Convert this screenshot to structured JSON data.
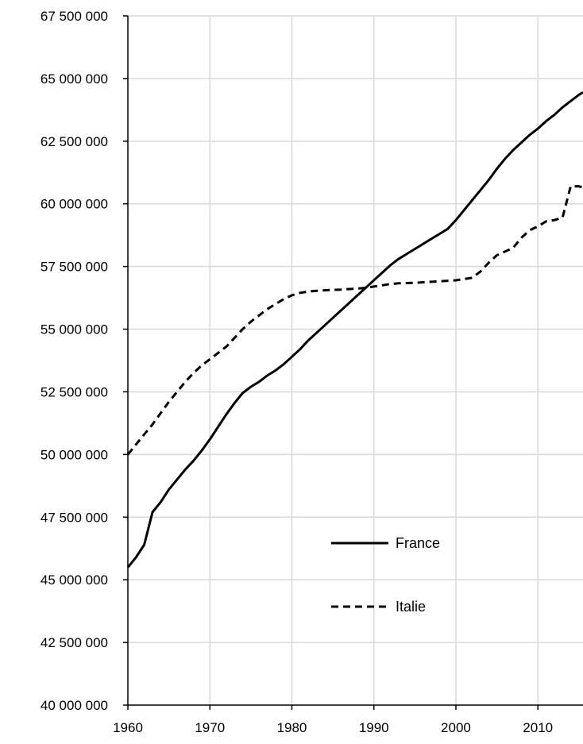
{
  "chart_data": {
    "type": "line",
    "title": "",
    "xlabel": "",
    "ylabel": "",
    "xlim": [
      1960,
      2015.5
    ],
    "ylim": [
      40000000,
      67500000
    ],
    "x_ticks": [
      1960,
      1970,
      1980,
      1990,
      2000,
      2010
    ],
    "y_ticks": [
      40000000,
      42500000,
      45000000,
      47500000,
      50000000,
      52500000,
      55000000,
      57500000,
      60000000,
      62500000,
      65000000,
      67500000
    ],
    "y_tick_labels": [
      "40 000 000",
      "42 500 000",
      "45 000 000",
      "47 500 000",
      "50 000 000",
      "52 500 000",
      "55 000 000",
      "57 500 000",
      "60 000 000",
      "62 500 000",
      "65 000 000",
      "67 500 000"
    ],
    "grid": true,
    "legend_position": "lower-center",
    "series": [
      {
        "name": "France",
        "style": "solid",
        "color": "#000000",
        "x": [
          1960,
          1961,
          1962,
          1963,
          1964,
          1965,
          1966,
          1967,
          1968,
          1969,
          1970,
          1971,
          1972,
          1973,
          1974,
          1975,
          1976,
          1977,
          1978,
          1979,
          1980,
          1981,
          1982,
          1983,
          1984,
          1985,
          1986,
          1987,
          1988,
          1989,
          1990,
          1991,
          1992,
          1993,
          1994,
          1995,
          1996,
          1997,
          1998,
          1999,
          2000,
          2001,
          2002,
          2003,
          2004,
          2005,
          2006,
          2007,
          2008,
          2009,
          2010,
          2011,
          2012,
          2013,
          2014,
          2015,
          2015.5
        ],
        "values": [
          45500000,
          45900000,
          46400000,
          47700000,
          48100000,
          48600000,
          49000000,
          49400000,
          49750000,
          50150000,
          50600000,
          51100000,
          51600000,
          52050000,
          52450000,
          52700000,
          52900000,
          53150000,
          53350000,
          53600000,
          53900000,
          54200000,
          54550000,
          54850000,
          55150000,
          55450000,
          55750000,
          56050000,
          56350000,
          56650000,
          56950000,
          57250000,
          57550000,
          57800000,
          58000000,
          58200000,
          58400000,
          58600000,
          58800000,
          59000000,
          59350000,
          59750000,
          60150000,
          60550000,
          60950000,
          61400000,
          61800000,
          62150000,
          62450000,
          62750000,
          63000000,
          63300000,
          63550000,
          63850000,
          64100000,
          64350000,
          64450000
        ]
      },
      {
        "name": "Italie",
        "style": "dashed",
        "color": "#000000",
        "x": [
          1960,
          1961,
          1962,
          1963,
          1964,
          1965,
          1966,
          1967,
          1968,
          1969,
          1970,
          1971,
          1972,
          1973,
          1974,
          1975,
          1976,
          1977,
          1978,
          1979,
          1980,
          1981,
          1982,
          1983,
          1984,
          1985,
          1986,
          1987,
          1988,
          1989,
          1990,
          1991,
          1992,
          1993,
          1994,
          1995,
          1996,
          1997,
          1998,
          1999,
          2000,
          2001,
          2002,
          2003,
          2004,
          2005,
          2006,
          2007,
          2008,
          2009,
          2010,
          2011,
          2012,
          2013,
          2014,
          2015,
          2015.5
        ],
        "values": [
          50000000,
          50400000,
          50800000,
          51200000,
          51650000,
          52100000,
          52500000,
          52900000,
          53250000,
          53550000,
          53800000,
          54050000,
          54300000,
          54650000,
          55000000,
          55300000,
          55550000,
          55800000,
          56000000,
          56200000,
          56350000,
          56450000,
          56500000,
          56530000,
          56550000,
          56570000,
          56580000,
          56600000,
          56620000,
          56650000,
          56700000,
          56750000,
          56800000,
          56830000,
          56840000,
          56850000,
          56870000,
          56890000,
          56910000,
          56930000,
          56950000,
          57000000,
          57050000,
          57300000,
          57650000,
          57950000,
          58100000,
          58250000,
          58650000,
          58950000,
          59100000,
          59300000,
          59350000,
          59450000,
          60700000,
          60700000,
          60650000
        ]
      }
    ]
  }
}
